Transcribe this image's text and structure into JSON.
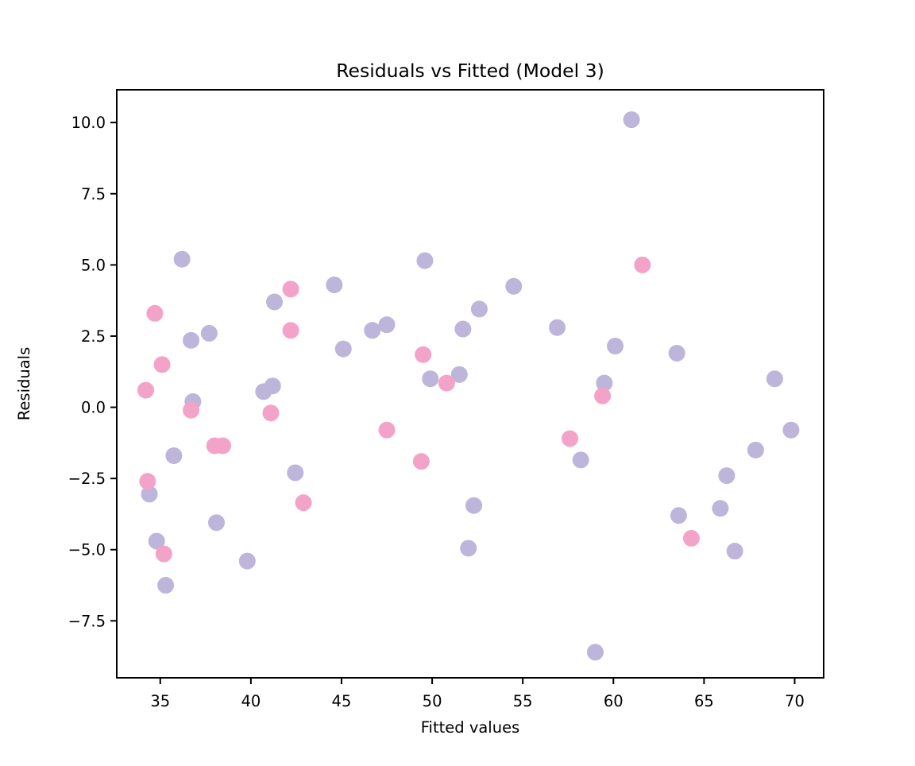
{
  "chart_data": {
    "type": "scatter",
    "title": "Residuals vs Fitted (Model 3)",
    "xlabel": "Fitted values",
    "ylabel": "Residuals",
    "xlim": [
      32.6,
      71.6
    ],
    "ylim": [
      -9.5,
      11.15
    ],
    "xticks": [
      35,
      40,
      45,
      50,
      55,
      60,
      65,
      70
    ],
    "xtick_labels": [
      "35",
      "40",
      "45",
      "50",
      "55",
      "60",
      "65",
      "70"
    ],
    "yticks": [
      10.0,
      7.5,
      5.0,
      2.5,
      0.0,
      -2.5,
      -5.0,
      -7.5
    ],
    "ytick_labels": [
      "10.0",
      "7.5",
      "5.0",
      "2.5",
      "0.0",
      "−2.5",
      "−5.0",
      "−7.5"
    ],
    "grid": false,
    "legend_position": "none",
    "marker": {
      "shape": "circle",
      "radius_px": 10.5
    },
    "series": [
      {
        "name": "lavender-group",
        "color": "#bdb5da",
        "points": [
          [
            36.2,
            5.2
          ],
          [
            49.6,
            5.15
          ],
          [
            61.0,
            10.1
          ],
          [
            54.5,
            4.25
          ],
          [
            44.6,
            4.3
          ],
          [
            41.3,
            3.7
          ],
          [
            52.6,
            3.45
          ],
          [
            36.7,
            2.35
          ],
          [
            37.7,
            2.6
          ],
          [
            46.7,
            2.7
          ],
          [
            47.5,
            2.9
          ],
          [
            51.7,
            2.75
          ],
          [
            56.9,
            2.8
          ],
          [
            45.1,
            2.05
          ],
          [
            60.1,
            2.15
          ],
          [
            63.5,
            1.9
          ],
          [
            68.9,
            1.0
          ],
          [
            59.5,
            0.85
          ],
          [
            49.9,
            1.0
          ],
          [
            51.5,
            1.15
          ],
          [
            40.7,
            0.55
          ],
          [
            41.2,
            0.75
          ],
          [
            36.8,
            0.2
          ],
          [
            35.75,
            -1.7
          ],
          [
            58.2,
            -1.85
          ],
          [
            67.85,
            -1.5
          ],
          [
            42.45,
            -2.3
          ],
          [
            66.25,
            -2.4
          ],
          [
            34.4,
            -3.05
          ],
          [
            52.3,
            -3.45
          ],
          [
            63.6,
            -3.8
          ],
          [
            65.9,
            -3.55
          ],
          [
            38.1,
            -4.05
          ],
          [
            34.8,
            -4.7
          ],
          [
            52.0,
            -4.95
          ],
          [
            66.7,
            -5.05
          ],
          [
            39.8,
            -5.4
          ],
          [
            35.3,
            -6.25
          ],
          [
            69.8,
            -0.8
          ],
          [
            59.0,
            -8.6
          ]
        ]
      },
      {
        "name": "pink-group",
        "color": "#f4a3c8",
        "points": [
          [
            34.7,
            3.3
          ],
          [
            42.2,
            4.15
          ],
          [
            61.6,
            5.0
          ],
          [
            42.2,
            2.7
          ],
          [
            35.1,
            1.5
          ],
          [
            34.2,
            0.6
          ],
          [
            49.5,
            1.85
          ],
          [
            50.8,
            0.85
          ],
          [
            36.7,
            -0.1
          ],
          [
            41.1,
            -0.2
          ],
          [
            47.5,
            -0.8
          ],
          [
            57.6,
            -1.1
          ],
          [
            38.0,
            -1.35
          ],
          [
            38.45,
            -1.35
          ],
          [
            49.4,
            -1.9
          ],
          [
            34.3,
            -2.6
          ],
          [
            42.9,
            -3.35
          ],
          [
            35.2,
            -5.15
          ],
          [
            64.3,
            -4.6
          ],
          [
            59.4,
            0.4
          ]
        ]
      }
    ]
  }
}
